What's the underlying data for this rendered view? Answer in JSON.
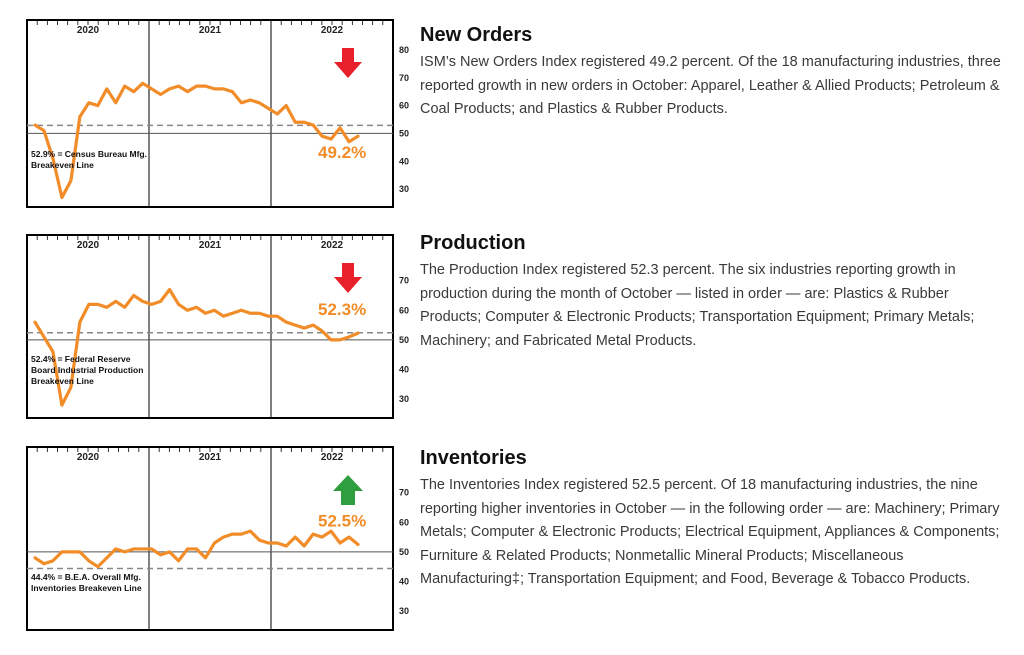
{
  "colors": {
    "line": "#F28C28",
    "value_label": "#F28C28",
    "down_arrow": "#E8202A",
    "up_arrow": "#2E9E3F",
    "frame": "#000000",
    "dashed": "#888888"
  },
  "panels": [
    {
      "id": "new-orders",
      "heading": "New Orders",
      "body": "ISM’s New Orders Index registered 49.2 percent. Of the 18 manufacturing industries, three reported growth in new orders in October: Apparel, Leather & Allied Products; Petroleum & Coal Products; and Plastics & Rubber Products.",
      "arrow": "down-arrow-icon",
      "value_label": "49.2%",
      "note_lines": [
        "52.9% = Census Bureau Mfg.",
        "Breakeven Line"
      ]
    },
    {
      "id": "production",
      "heading": "Production",
      "body": "The Production Index registered 52.3 percent. The six industries reporting growth in production during the month of October — listed in order — are: Plastics & Rubber Products; Computer & Electronic Products; Transportation Equipment; Primary Metals; Machinery; and Fabricated Metal Products.",
      "arrow": "down-arrow-icon",
      "value_label": "52.3%",
      "note_lines": [
        "52.4% = Federal Reserve",
        "Board Industrial Production",
        "Breakeven Line"
      ]
    },
    {
      "id": "inventories",
      "heading": "Inventories",
      "body": "The Inventories Index registered 52.5 percent. Of 18 manufacturing industries, the nine reporting higher inventories in October — in the following order — are: Machinery; Primary Metals; Computer & Electronic Products; Electrical Equipment, Appliances & Components; Furniture & Related Products; Nonmetallic Mineral Products; Miscellaneous Manufacturing‡; Transportation Equipment; and Food, Beverage & Tobacco Products.",
      "arrow": "up-arrow-icon",
      "value_label": "52.5%",
      "note_lines": [
        "44.4% = B.E.A. Overall Mfg.",
        "Inventories Breakeven Line"
      ]
    }
  ],
  "chart_data": [
    {
      "type": "line",
      "title": "",
      "years": [
        "2020",
        "2021",
        "2022"
      ],
      "y_ticks": [
        "80",
        "70",
        "60",
        "50",
        "40",
        "30"
      ],
      "ylim": [
        25,
        85
      ],
      "reference_lines": [
        {
          "value": 52.9,
          "style": "dashed"
        },
        {
          "value": 50,
          "style": "solid"
        }
      ],
      "series": [
        {
          "values": [
            53,
            51,
            41,
            27,
            33,
            56,
            61,
            60,
            66,
            61,
            67,
            65,
            68,
            66,
            64,
            66,
            67,
            65,
            67,
            67,
            66,
            66,
            65,
            61,
            62,
            61,
            59,
            57,
            60,
            54,
            54,
            53,
            49,
            48,
            52,
            47,
            49
          ]
        }
      ]
    },
    {
      "type": "line",
      "title": "",
      "years": [
        "2020",
        "2021",
        "2022"
      ],
      "y_ticks": [
        "70",
        "60",
        "50",
        "40",
        "30"
      ],
      "ylim": [
        25,
        80
      ],
      "reference_lines": [
        {
          "value": 52.4,
          "style": "dashed"
        },
        {
          "value": 50,
          "style": "solid"
        }
      ],
      "series": [
        {
          "values": [
            56,
            51,
            46,
            28,
            34,
            56,
            62,
            62,
            61,
            63,
            61,
            65,
            63,
            62,
            63,
            67,
            62,
            60,
            61,
            59,
            60,
            58,
            59,
            60,
            59,
            59,
            58,
            58,
            56,
            55,
            54,
            55,
            53,
            50,
            50,
            51,
            52.3
          ]
        }
      ]
    },
    {
      "type": "line",
      "title": "",
      "years": [
        "2020",
        "2021",
        "2022"
      ],
      "y_ticks": [
        "70",
        "60",
        "50",
        "40",
        "30"
      ],
      "ylim": [
        25,
        80
      ],
      "reference_lines": [
        {
          "value": 50,
          "style": "solid"
        },
        {
          "value": 44.4,
          "style": "dashed"
        }
      ],
      "series": [
        {
          "values": [
            48,
            46,
            47,
            50,
            50,
            50,
            47,
            45,
            48,
            51,
            50,
            51,
            51,
            51,
            49,
            50,
            47,
            51,
            51,
            48,
            53,
            55,
            56,
            56,
            57,
            54,
            53,
            53,
            52,
            55,
            52,
            56,
            55,
            57,
            53,
            55,
            52.5
          ]
        }
      ]
    }
  ]
}
